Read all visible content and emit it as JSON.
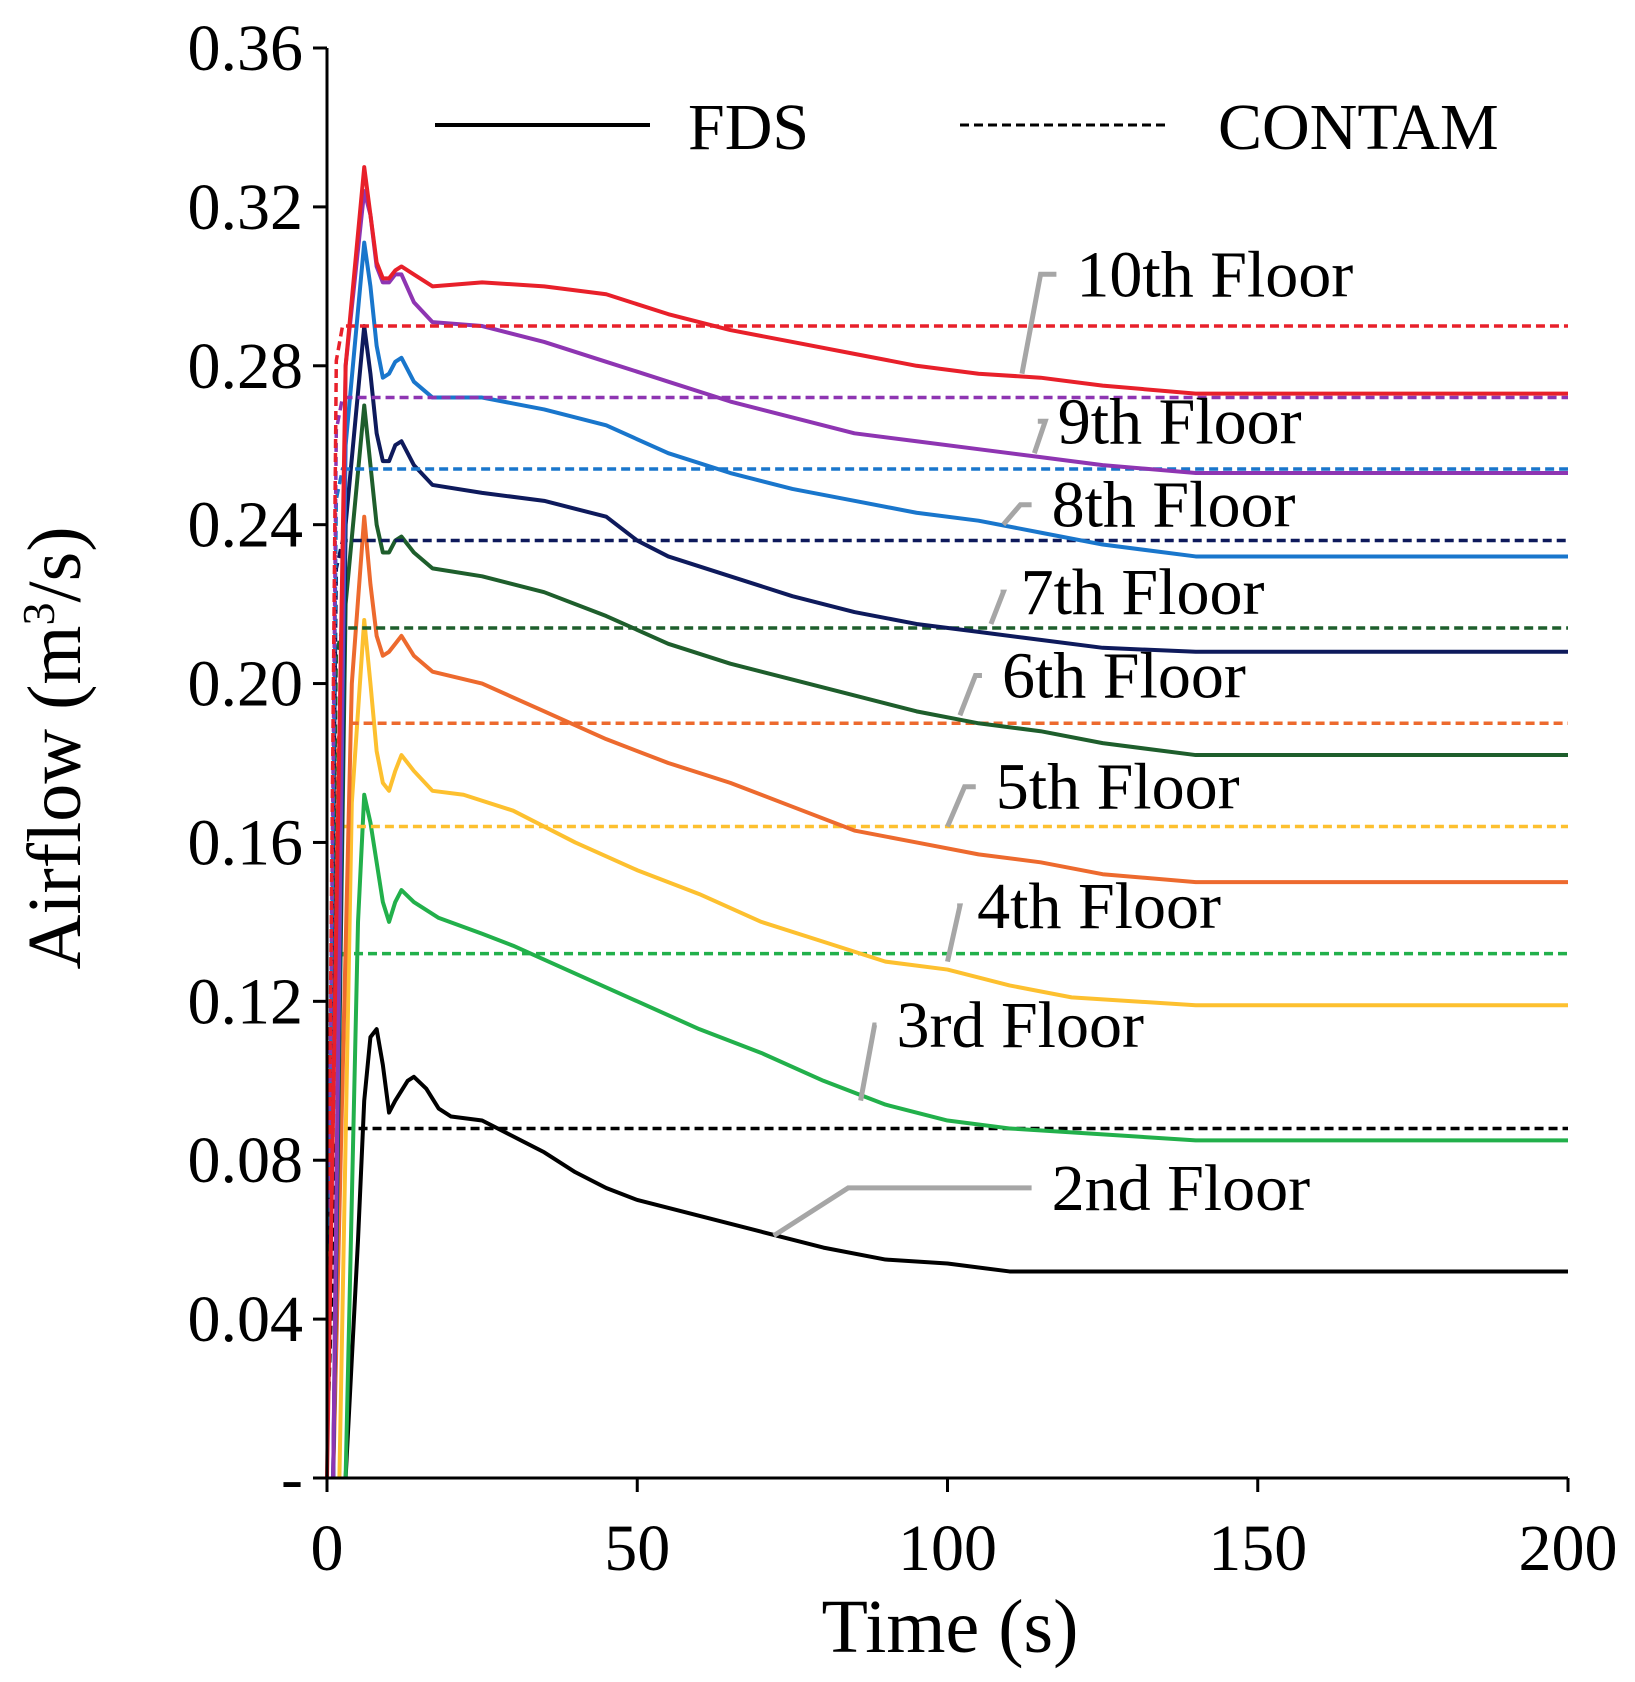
{
  "chart_data": {
    "type": "line",
    "title": "",
    "xlabel": "Time (s)",
    "ylabel_main": "Airflow (m",
    "ylabel_sup": "3",
    "ylabel_end": "/s)",
    "xlim": [
      0,
      200
    ],
    "ylim": [
      0,
      0.36
    ],
    "grid": false,
    "x_ticks": [
      0,
      50,
      100,
      150,
      200
    ],
    "x_tick_labels": [
      "0",
      "50",
      "100",
      "150",
      "200"
    ],
    "y_ticks": [
      0,
      0.04,
      0.08,
      0.12,
      0.16,
      0.2,
      0.24,
      0.28,
      0.32,
      0.36
    ],
    "y_tick_labels": [
      "-",
      "0.04",
      "0.08",
      "0.12",
      "0.16",
      "0.20",
      "0.24",
      "0.28",
      "0.32",
      "0.36"
    ],
    "legend": {
      "placement": "top",
      "entries": [
        {
          "label": "FDS",
          "style": "solid"
        },
        {
          "label": "CONTAM",
          "style": "dashed"
        }
      ]
    },
    "series": [
      {
        "name": "2nd Floor",
        "color": "#000000",
        "label": "2nd Floor",
        "label_anchor": [
          72,
          0.061
        ],
        "label_pos": [
          120,
          0.069
        ],
        "contam": 0.088,
        "fds": [
          [
            3,
            0
          ],
          [
            5,
            0.06
          ],
          [
            6,
            0.095
          ],
          [
            7,
            0.111
          ],
          [
            8,
            0.113
          ],
          [
            9,
            0.104
          ],
          [
            10,
            0.092
          ],
          [
            11,
            0.095
          ],
          [
            13,
            0.1
          ],
          [
            14,
            0.101
          ],
          [
            16,
            0.098
          ],
          [
            18,
            0.093
          ],
          [
            20,
            0.091
          ],
          [
            25,
            0.09
          ],
          [
            30,
            0.086
          ],
          [
            35,
            0.082
          ],
          [
            40,
            0.077
          ],
          [
            45,
            0.073
          ],
          [
            50,
            0.07
          ],
          [
            60,
            0.066
          ],
          [
            70,
            0.062
          ],
          [
            80,
            0.058
          ],
          [
            90,
            0.055
          ],
          [
            100,
            0.054
          ],
          [
            110,
            0.052
          ],
          [
            140,
            0.052
          ],
          [
            200,
            0.052
          ]
        ]
      },
      {
        "name": "3rd Floor",
        "color": "#22b04b",
        "label": "3rd Floor",
        "label_anchor": [
          86,
          0.095
        ],
        "label_pos": [
          95,
          0.11
        ],
        "contam": 0.132,
        "fds": [
          [
            3,
            0
          ],
          [
            5,
            0.14
          ],
          [
            6,
            0.172
          ],
          [
            7,
            0.165
          ],
          [
            8,
            0.155
          ],
          [
            9,
            0.145
          ],
          [
            10,
            0.14
          ],
          [
            11,
            0.145
          ],
          [
            12,
            0.148
          ],
          [
            14,
            0.145
          ],
          [
            18,
            0.141
          ],
          [
            25,
            0.137
          ],
          [
            30,
            0.134
          ],
          [
            40,
            0.127
          ],
          [
            50,
            0.12
          ],
          [
            60,
            0.113
          ],
          [
            70,
            0.107
          ],
          [
            80,
            0.1
          ],
          [
            90,
            0.094
          ],
          [
            100,
            0.09
          ],
          [
            110,
            0.088
          ],
          [
            120,
            0.087
          ],
          [
            140,
            0.085
          ],
          [
            200,
            0.085
          ]
        ]
      },
      {
        "name": "4th Floor",
        "color": "#fdc02f",
        "label": "4th Floor",
        "label_anchor": [
          100,
          0.13
        ],
        "label_pos": [
          108,
          0.14
        ],
        "contam": 0.164,
        "fds": [
          [
            2,
            0
          ],
          [
            4,
            0.17
          ],
          [
            6,
            0.216
          ],
          [
            7,
            0.2
          ],
          [
            8,
            0.183
          ],
          [
            9,
            0.175
          ],
          [
            10,
            0.173
          ],
          [
            11,
            0.178
          ],
          [
            12,
            0.182
          ],
          [
            14,
            0.178
          ],
          [
            17,
            0.173
          ],
          [
            22,
            0.172
          ],
          [
            30,
            0.168
          ],
          [
            40,
            0.16
          ],
          [
            50,
            0.153
          ],
          [
            60,
            0.147
          ],
          [
            70,
            0.14
          ],
          [
            80,
            0.135
          ],
          [
            90,
            0.13
          ],
          [
            100,
            0.128
          ],
          [
            110,
            0.124
          ],
          [
            120,
            0.121
          ],
          [
            140,
            0.119
          ],
          [
            200,
            0.119
          ]
        ]
      },
      {
        "name": "5th Floor",
        "color": "#ed6a2e",
        "label": "5th Floor",
        "label_anchor": [
          100,
          0.164
        ],
        "label_pos": [
          111,
          0.17
        ],
        "contam": 0.19,
        "fds": [
          [
            1,
            0
          ],
          [
            4,
            0.2
          ],
          [
            6,
            0.242
          ],
          [
            7,
            0.225
          ],
          [
            8,
            0.212
          ],
          [
            9,
            0.207
          ],
          [
            10,
            0.208
          ],
          [
            11,
            0.21
          ],
          [
            12,
            0.212
          ],
          [
            14,
            0.207
          ],
          [
            17,
            0.203
          ],
          [
            25,
            0.2
          ],
          [
            35,
            0.193
          ],
          [
            45,
            0.186
          ],
          [
            55,
            0.18
          ],
          [
            65,
            0.175
          ],
          [
            75,
            0.169
          ],
          [
            85,
            0.163
          ],
          [
            95,
            0.16
          ],
          [
            105,
            0.157
          ],
          [
            115,
            0.155
          ],
          [
            125,
            0.152
          ],
          [
            140,
            0.15
          ],
          [
            200,
            0.15
          ]
        ]
      },
      {
        "name": "6th Floor",
        "color": "#1e5e2c",
        "label": "6th Floor",
        "label_anchor": [
          102,
          0.192
        ],
        "label_pos": [
          112,
          0.198
        ],
        "contam": 0.214,
        "fds": [
          [
            1,
            0
          ],
          [
            3,
            0.22
          ],
          [
            6,
            0.27
          ],
          [
            7,
            0.255
          ],
          [
            8,
            0.24
          ],
          [
            9,
            0.233
          ],
          [
            10,
            0.233
          ],
          [
            11,
            0.236
          ],
          [
            12,
            0.237
          ],
          [
            14,
            0.233
          ],
          [
            17,
            0.229
          ],
          [
            25,
            0.227
          ],
          [
            35,
            0.223
          ],
          [
            45,
            0.217
          ],
          [
            55,
            0.21
          ],
          [
            65,
            0.205
          ],
          [
            75,
            0.201
          ],
          [
            85,
            0.197
          ],
          [
            95,
            0.193
          ],
          [
            105,
            0.19
          ],
          [
            115,
            0.188
          ],
          [
            125,
            0.185
          ],
          [
            140,
            0.182
          ],
          [
            200,
            0.182
          ]
        ]
      },
      {
        "name": "7th Floor",
        "color": "#0e1a5c",
        "label": "7th Floor",
        "label_anchor": [
          107,
          0.215
        ],
        "label_pos": [
          115,
          0.219
        ],
        "contam": 0.236,
        "fds": [
          [
            1,
            0
          ],
          [
            3,
            0.24
          ],
          [
            6,
            0.29
          ],
          [
            7,
            0.278
          ],
          [
            8,
            0.263
          ],
          [
            9,
            0.256
          ],
          [
            10,
            0.256
          ],
          [
            11,
            0.26
          ],
          [
            12,
            0.261
          ],
          [
            14,
            0.255
          ],
          [
            17,
            0.25
          ],
          [
            25,
            0.248
          ],
          [
            35,
            0.246
          ],
          [
            45,
            0.242
          ],
          [
            50,
            0.236
          ],
          [
            55,
            0.232
          ],
          [
            65,
            0.227
          ],
          [
            75,
            0.222
          ],
          [
            85,
            0.218
          ],
          [
            95,
            0.215
          ],
          [
            105,
            0.213
          ],
          [
            115,
            0.211
          ],
          [
            125,
            0.209
          ],
          [
            140,
            0.208
          ],
          [
            200,
            0.208
          ]
        ]
      },
      {
        "name": "8th Floor",
        "color": "#1976cc",
        "label": "8th Floor",
        "label_anchor": [
          109,
          0.24
        ],
        "label_pos": [
          120,
          0.241
        ],
        "contam": 0.254,
        "fds": [
          [
            1,
            0
          ],
          [
            3,
            0.26
          ],
          [
            6,
            0.311
          ],
          [
            7,
            0.3
          ],
          [
            8,
            0.285
          ],
          [
            9,
            0.277
          ],
          [
            10,
            0.278
          ],
          [
            11,
            0.281
          ],
          [
            12,
            0.282
          ],
          [
            14,
            0.276
          ],
          [
            17,
            0.272
          ],
          [
            25,
            0.272
          ],
          [
            35,
            0.269
          ],
          [
            45,
            0.265
          ],
          [
            55,
            0.258
          ],
          [
            65,
            0.253
          ],
          [
            75,
            0.249
          ],
          [
            85,
            0.246
          ],
          [
            95,
            0.243
          ],
          [
            105,
            0.241
          ],
          [
            115,
            0.238
          ],
          [
            125,
            0.235
          ],
          [
            140,
            0.232
          ],
          [
            200,
            0.232
          ]
        ]
      },
      {
        "name": "9th Floor",
        "color": "#8e35b2",
        "label": "9th Floor",
        "label_anchor": [
          114,
          0.258
        ],
        "label_pos": [
          121,
          0.262
        ],
        "contam": 0.272,
        "fds": [
          [
            1,
            0
          ],
          [
            3,
            0.28
          ],
          [
            6,
            0.324
          ],
          [
            7,
            0.318
          ],
          [
            8,
            0.305
          ],
          [
            9,
            0.301
          ],
          [
            10,
            0.301
          ],
          [
            11,
            0.303
          ],
          [
            12,
            0.303
          ],
          [
            14,
            0.296
          ],
          [
            17,
            0.291
          ],
          [
            25,
            0.29
          ],
          [
            35,
            0.286
          ],
          [
            45,
            0.281
          ],
          [
            55,
            0.276
          ],
          [
            65,
            0.271
          ],
          [
            75,
            0.267
          ],
          [
            85,
            0.263
          ],
          [
            95,
            0.261
          ],
          [
            105,
            0.259
          ],
          [
            115,
            0.257
          ],
          [
            125,
            0.255
          ],
          [
            140,
            0.253
          ],
          [
            200,
            0.253
          ]
        ]
      },
      {
        "name": "10th Floor",
        "color": "#e8202a",
        "label": "10th Floor",
        "label_anchor": [
          112,
          0.278
        ],
        "label_pos": [
          124,
          0.299
        ],
        "contam": 0.29,
        "fds": [
          [
            0,
            0
          ],
          [
            3,
            0.28
          ],
          [
            6,
            0.33
          ],
          [
            7,
            0.318
          ],
          [
            8,
            0.306
          ],
          [
            9,
            0.302
          ],
          [
            10,
            0.302
          ],
          [
            11,
            0.304
          ],
          [
            12,
            0.305
          ],
          [
            14,
            0.303
          ],
          [
            17,
            0.3
          ],
          [
            25,
            0.301
          ],
          [
            35,
            0.3
          ],
          [
            45,
            0.298
          ],
          [
            55,
            0.293
          ],
          [
            65,
            0.289
          ],
          [
            75,
            0.286
          ],
          [
            85,
            0.283
          ],
          [
            95,
            0.28
          ],
          [
            105,
            0.278
          ],
          [
            115,
            0.277
          ],
          [
            125,
            0.275
          ],
          [
            140,
            0.273
          ],
          [
            200,
            0.273
          ]
        ]
      }
    ]
  }
}
